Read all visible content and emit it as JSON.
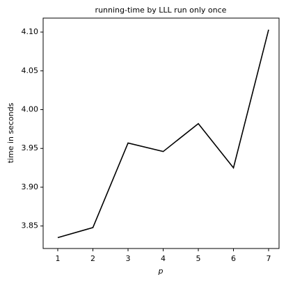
{
  "chart_data": {
    "type": "line",
    "title": "running-time by LLL run only once",
    "xlabel": "p",
    "ylabel": "time in seconds",
    "x": [
      1,
      2,
      3,
      4,
      5,
      6,
      7
    ],
    "series": [
      {
        "values": [
          3.835,
          3.848,
          3.957,
          3.946,
          3.982,
          3.925,
          4.103
        ],
        "color": "#000000"
      }
    ],
    "xlim": [
      0.584,
      7.297
    ],
    "xticks": [
      1,
      2,
      3,
      4,
      5,
      6,
      7
    ],
    "ylim": [
      3.821,
      4.118
    ],
    "yticks": [
      3.85,
      {
        "value": 3.9,
        "label": "3.90"
      },
      3.95,
      {
        "value": 4,
        "label": "4.00"
      },
      4.05,
      {
        "value": 4.1,
        "label": "4.10"
      }
    ]
  }
}
